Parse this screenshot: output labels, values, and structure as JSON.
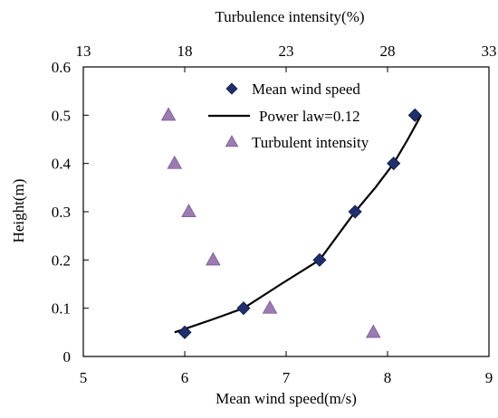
{
  "chart_data": {
    "type": "scatter",
    "title": "",
    "xlabel": "Mean wind speed(m/s)",
    "x2label": "Turbulence intensity(%)",
    "ylabel": "Height(m)",
    "xlim": [
      5,
      9
    ],
    "x2lim": [
      13,
      33
    ],
    "ylim": [
      0,
      0.6
    ],
    "x_ticks": [
      "5",
      "6",
      "7",
      "8",
      "9"
    ],
    "x2_ticks": [
      "13",
      "18",
      "23",
      "28",
      "33"
    ],
    "y_ticks": [
      "0",
      "0.1",
      "0.2",
      "0.3",
      "0.4",
      "0.5",
      "0.6"
    ],
    "grid": false,
    "legend_position": "top-right",
    "series": [
      {
        "name": "Mean wind speed",
        "marker": "diamond",
        "axis": "bottom",
        "color": "#1f2f6b",
        "x": [
          6.0,
          6.58,
          7.33,
          7.68,
          8.06,
          8.27
        ],
        "y": [
          0.05,
          0.1,
          0.2,
          0.3,
          0.4,
          0.5
        ]
      },
      {
        "name": "Power law=0.12",
        "marker": "line",
        "axis": "bottom",
        "color": "#000000",
        "x": [
          5.9,
          6.0,
          6.25,
          6.58,
          6.95,
          7.33,
          7.68,
          7.88,
          8.06,
          8.2,
          8.33
        ],
        "y": [
          0.05,
          0.057,
          0.075,
          0.1,
          0.15,
          0.2,
          0.3,
          0.35,
          0.4,
          0.45,
          0.5
        ]
      },
      {
        "name": "Turbulent intensity",
        "marker": "triangle",
        "axis": "top",
        "color": "#9b7bb0",
        "x": [
          17.2,
          17.5,
          18.2,
          19.4,
          22.2,
          27.3
        ],
        "y": [
          0.5,
          0.4,
          0.3,
          0.2,
          0.1,
          0.05
        ]
      }
    ]
  }
}
